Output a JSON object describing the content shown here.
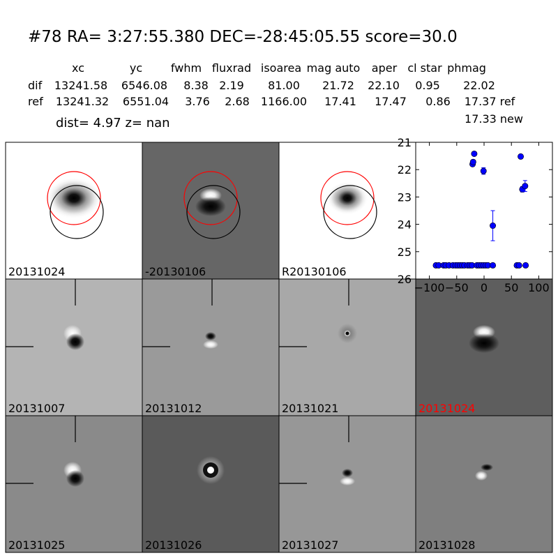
{
  "header": {
    "title": "#78   RA= 3:27:55.380 DEC=-28:45:05.55       score=30.0",
    "columns": [
      "xc",
      "yc",
      "fwhm",
      "fluxrad",
      "isoarea",
      "mag auto",
      "aper",
      "cl star",
      "phmag"
    ],
    "rows": [
      {
        "label": "dif",
        "values": [
          "13241.58",
          "6546.08",
          "8.38",
          "2.19",
          "81.00",
          "21.72",
          "22.10",
          "0.95",
          "22.02"
        ]
      },
      {
        "label": "ref",
        "values": [
          "13241.32",
          "6551.04",
          "3.76",
          "2.68",
          "1166.00",
          "17.41",
          "17.47",
          "0.86",
          "17.37 ref"
        ]
      }
    ],
    "extra_phmag": "17.33 new",
    "dist_line": "dist=  4.97       z=   nan"
  },
  "colors": {
    "marker": "#0000ff",
    "red_label": "#ff0000",
    "circle_red": "#ff0000",
    "circle_black": "#000000"
  },
  "panels": [
    {
      "label": "20131024",
      "label_color": "black",
      "style": "ref-star",
      "bg": "#ffffff",
      "circles": true
    },
    {
      "label": "-20130106",
      "label_color": "black",
      "style": "dipole-dark",
      "bg": "#666666",
      "circles": true
    },
    {
      "label": "R20130106",
      "label_color": "black",
      "style": "ref-star-small",
      "bg": "#ffffff",
      "circles": true
    },
    {
      "label": "20131007",
      "label_color": "black",
      "style": "dipole",
      "bg": "#b4b4b4",
      "crosshair": true
    },
    {
      "label": "20131012",
      "label_color": "black",
      "style": "dipole-small",
      "bg": "#9a9a9a",
      "crosshair": true
    },
    {
      "label": "20131021",
      "label_color": "black",
      "style": "point",
      "bg": "#a8a8a8",
      "crosshair": true
    },
    {
      "label": "20131024",
      "label_color": "red",
      "style": "dipole-big",
      "bg": "#5e5e5e",
      "crosshair": false
    },
    {
      "label": "20131025",
      "label_color": "black",
      "style": "dipole",
      "bg": "#8a8a8a",
      "crosshair": true
    },
    {
      "label": "20131026",
      "label_color": "black",
      "style": "ring",
      "bg": "#5a5a5a",
      "crosshair": false
    },
    {
      "label": "20131027",
      "label_color": "black",
      "style": "dipole-small",
      "bg": "#979797",
      "crosshair": true
    },
    {
      "label": "20131028",
      "label_color": "black",
      "style": "dipole-faint",
      "bg": "#7f7f7f",
      "crosshair": false
    }
  ],
  "chart_data": {
    "type": "scatter",
    "xlim": [
      -125,
      125
    ],
    "ylim": [
      26,
      21
    ],
    "xticks": [
      -100,
      -50,
      0,
      50,
      100
    ],
    "xtick_labels": [
      "−100",
      "−50",
      "0",
      "50",
      "100"
    ],
    "yticks": [
      21,
      22,
      23,
      24,
      25,
      26
    ],
    "ytick_labels": [
      "21",
      "22",
      "23",
      "24",
      "25",
      "26"
    ],
    "inverted_y": true,
    "points": [
      {
        "x": -88,
        "y": 25.5,
        "err": 0
      },
      {
        "x": -83,
        "y": 25.5,
        "err": 0
      },
      {
        "x": -74,
        "y": 25.5,
        "err": 0
      },
      {
        "x": -70,
        "y": 25.5,
        "err": 0
      },
      {
        "x": -64,
        "y": 25.5,
        "err": 0
      },
      {
        "x": -57,
        "y": 25.5,
        "err": 0
      },
      {
        "x": -52,
        "y": 25.5,
        "err": 0
      },
      {
        "x": -48,
        "y": 25.5,
        "err": 0
      },
      {
        "x": -44,
        "y": 25.5,
        "err": 0
      },
      {
        "x": -40,
        "y": 25.5,
        "err": 0
      },
      {
        "x": -36,
        "y": 25.5,
        "err": 0
      },
      {
        "x": -30,
        "y": 25.5,
        "err": 0
      },
      {
        "x": -26,
        "y": 25.5,
        "err": 0
      },
      {
        "x": -22,
        "y": 25.5,
        "err": 0
      },
      {
        "x": -13,
        "y": 25.5,
        "err": 0
      },
      {
        "x": -9,
        "y": 25.5,
        "err": 0
      },
      {
        "x": -5,
        "y": 25.5,
        "err": 0
      },
      {
        "x": -1,
        "y": 25.5,
        "err": 0
      },
      {
        "x": 3,
        "y": 25.5,
        "err": 0
      },
      {
        "x": 7,
        "y": 25.5,
        "err": 0
      },
      {
        "x": 16,
        "y": 25.5,
        "err": 0
      },
      {
        "x": -21,
        "y": 21.8,
        "err": 0.07
      },
      {
        "x": -20,
        "y": 21.72,
        "err": 0.07
      },
      {
        "x": -18,
        "y": 21.42,
        "err": 0.05
      },
      {
        "x": -1,
        "y": 22.05,
        "err": 0.12
      },
      {
        "x": 16,
        "y": 24.05,
        "err": 0.55
      },
      {
        "x": 60,
        "y": 25.5,
        "err": 0
      },
      {
        "x": 64,
        "y": 25.5,
        "err": 0
      },
      {
        "x": 67,
        "y": 21.52,
        "err": 0.04
      },
      {
        "x": 70,
        "y": 22.72,
        "err": 0.1
      },
      {
        "x": 75,
        "y": 22.6,
        "err": 0.2
      },
      {
        "x": 76,
        "y": 25.5,
        "err": 0
      }
    ]
  }
}
